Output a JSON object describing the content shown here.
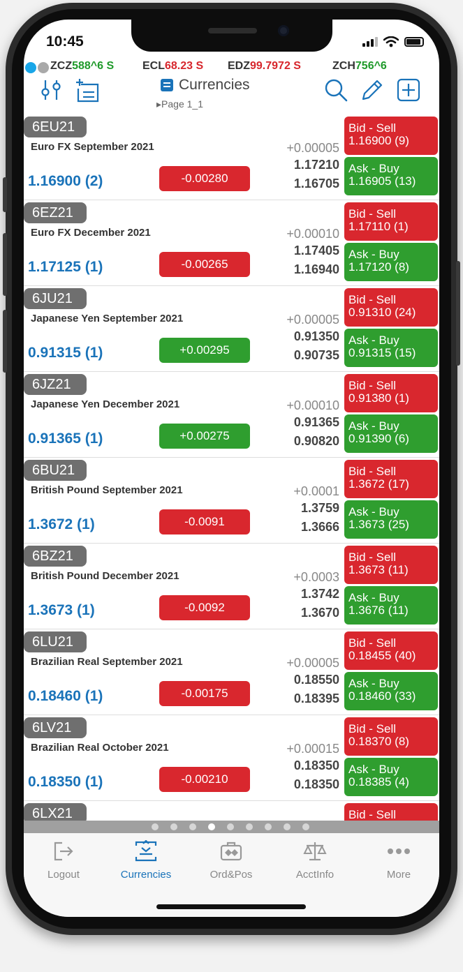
{
  "status": {
    "time": "10:45"
  },
  "ticker": [
    {
      "sym": "ZCZ",
      "val": "588^6 S",
      "color": "#1f9a2a"
    },
    {
      "sym": "ECL",
      "val": "68.23 S",
      "color": "#d7262c"
    },
    {
      "sym": "EDZ",
      "val": "99.7972 S",
      "color": "#d7262c"
    },
    {
      "sym": "ZCH",
      "val": "756^6",
      "color": "#1f9a2a"
    }
  ],
  "toolbar": {
    "title": "Currencies",
    "page": "Page 1_1"
  },
  "rows": [
    {
      "sym": "6EU21",
      "desc": "Euro FX  September 2021",
      "net": "+0.00005",
      "last": "1.16900 (2)",
      "change": "-0.00280",
      "change_dir": "down",
      "high": "1.17210",
      "low": "1.16705",
      "bid_label": "Bid - Sell",
      "bid": "1.16900 (9)",
      "ask_label": "Ask - Buy",
      "ask": "1.16905 (13)"
    },
    {
      "sym": "6EZ21",
      "desc": "Euro FX  December 2021",
      "net": "+0.00010",
      "last": "1.17125 (1)",
      "change": "-0.00265",
      "change_dir": "down",
      "high": "1.17405",
      "low": "1.16940",
      "bid_label": "Bid - Sell",
      "bid": "1.17110 (1)",
      "ask_label": "Ask - Buy",
      "ask": "1.17120 (8)"
    },
    {
      "sym": "6JU21",
      "desc": "Japanese Yen  September 2021",
      "net": "+0.00005",
      "last": "0.91315 (1)",
      "change": "+0.00295",
      "change_dir": "up",
      "high": "0.91350",
      "low": "0.90735",
      "bid_label": "Bid - Sell",
      "bid": "0.91310 (24)",
      "ask_label": "Ask - Buy",
      "ask": "0.91315 (15)"
    },
    {
      "sym": "6JZ21",
      "desc": "Japanese Yen  December 2021",
      "net": "+0.00010",
      "last": "0.91365 (1)",
      "change": "+0.00275",
      "change_dir": "up",
      "high": "0.91365",
      "low": "0.90820",
      "bid_label": "Bid - Sell",
      "bid": "0.91380 (1)",
      "ask_label": "Ask - Buy",
      "ask": "0.91390 (6)"
    },
    {
      "sym": "6BU21",
      "desc": "British Pound  September 2021",
      "net": "+0.0001",
      "last": "1.3672 (1)",
      "change": "-0.0091",
      "change_dir": "down",
      "high": "1.3759",
      "low": "1.3666",
      "bid_label": "Bid - Sell",
      "bid": "1.3672 (17)",
      "ask_label": "Ask - Buy",
      "ask": "1.3673 (25)"
    },
    {
      "sym": "6BZ21",
      "desc": "British Pound  December 2021",
      "net": "+0.0003",
      "last": "1.3673 (1)",
      "change": "-0.0092",
      "change_dir": "down",
      "high": "1.3742",
      "low": "1.3670",
      "bid_label": "Bid - Sell",
      "bid": "1.3673 (11)",
      "ask_label": "Ask - Buy",
      "ask": "1.3676 (11)"
    },
    {
      "sym": "6LU21",
      "desc": "Brazilian Real  September 2021",
      "net": "+0.00005",
      "last": "0.18460 (1)",
      "change": "-0.00175",
      "change_dir": "down",
      "high": "0.18550",
      "low": "0.18395",
      "bid_label": "Bid - Sell",
      "bid": "0.18455 (40)",
      "ask_label": "Ask - Buy",
      "ask": "0.18460 (33)"
    },
    {
      "sym": "6LV21",
      "desc": "Brazilian Real  October 2021",
      "net": "+0.00015",
      "last": "0.18350 (1)",
      "change": "-0.00210",
      "change_dir": "down",
      "high": "0.18350",
      "low": "0.18350",
      "bid_label": "Bid - Sell",
      "bid": "0.18370 (8)",
      "ask_label": "Ask - Buy",
      "ask": "0.18385 (4)"
    },
    {
      "sym": "6LX21",
      "desc": "",
      "net": "",
      "last": "",
      "change": "",
      "change_dir": "none",
      "high": "",
      "low": "",
      "bid_label": "Bid - Sell",
      "bid": "",
      "ask_label": "",
      "ask": ""
    }
  ],
  "pager": {
    "count": 9,
    "active": 3
  },
  "tabs": [
    {
      "label": "Logout",
      "icon": "logout-icon",
      "active": false
    },
    {
      "label": "Currencies",
      "icon": "currencies-icon",
      "active": true
    },
    {
      "label": "Ord&Pos",
      "icon": "orders-positions-icon",
      "active": false
    },
    {
      "label": "AcctInfo",
      "icon": "scales-icon",
      "active": false
    },
    {
      "label": "More",
      "icon": "more-icon",
      "active": false
    }
  ],
  "colors": {
    "accent": "#1a73b9",
    "sell": "#d9272e",
    "buy": "#2f9e2f",
    "down": "#d9272e",
    "up": "#2f9e2f"
  }
}
